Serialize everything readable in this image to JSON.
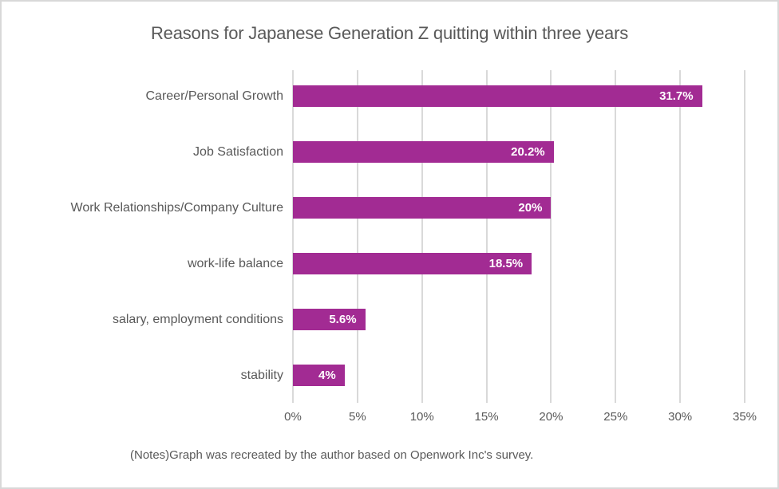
{
  "title": "Reasons for Japanese Generation Z quitting within three years",
  "notes": "(Notes)Graph was recreated by the author based on Openwork Inc's survey.",
  "colors": {
    "bar": "#A22B93",
    "gridline": "#D9D9D9",
    "text": "#595959",
    "value_label": "#FFFFFF",
    "frame_border": "#D8D8D8",
    "background": "#FFFFFF"
  },
  "chart_data": {
    "type": "bar",
    "orientation": "horizontal",
    "title": "Reasons for Japanese Generation Z quitting within three years",
    "xlabel": "",
    "ylabel": "",
    "categories": [
      "Career/Personal Growth",
      "Job Satisfaction",
      "Work Relationships/Company Culture",
      "work-life balance",
      "salary, employment conditions",
      "stability"
    ],
    "values": [
      31.7,
      20.2,
      20,
      18.5,
      5.6,
      4
    ],
    "value_labels": [
      "31.7%",
      "20.2%",
      "20%",
      "18.5%",
      "5.6%",
      "4%"
    ],
    "xlim": [
      0,
      35
    ],
    "xticks": [
      0,
      5,
      10,
      15,
      20,
      25,
      30,
      35
    ],
    "xtick_labels": [
      "0%",
      "5%",
      "10%",
      "15%",
      "20%",
      "25%",
      "30%",
      "35%"
    ],
    "grid": true,
    "legend": false,
    "data_labels": "inside-end"
  }
}
